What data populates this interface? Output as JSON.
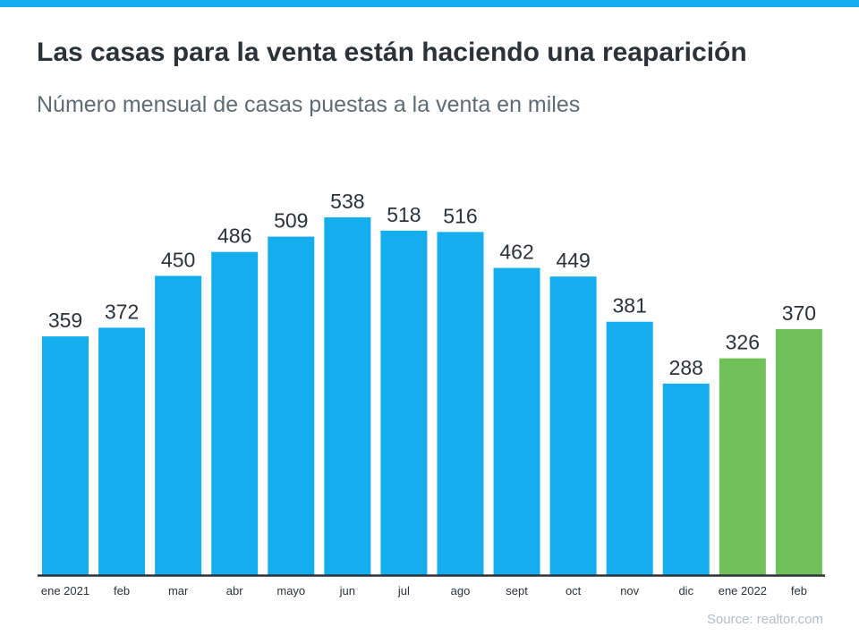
{
  "header": {
    "title": "Las casas para la venta están haciendo una reaparición",
    "subtitle": "Número mensual de casas puestas a la venta en miles"
  },
  "source": "Source: realtor.com",
  "colors": {
    "top_bar": "#14aeef",
    "bar_2021": "#14aeef",
    "bar_2022": "#70c15a",
    "axis": "#2d3238"
  },
  "chart_data": {
    "type": "bar",
    "title": "Las casas para la venta están haciendo una reaparición",
    "subtitle": "Número mensual de casas puestas a la venta en miles",
    "xlabel": "",
    "ylabel": "",
    "categories": [
      "ene 2021",
      "feb",
      "mar",
      "abr",
      "mayo",
      "jun",
      "jul",
      "ago",
      "sept",
      "oct",
      "nov",
      "dic",
      "ene 2022",
      "feb"
    ],
    "values": [
      359,
      372,
      450,
      486,
      509,
      538,
      518,
      516,
      462,
      449,
      381,
      288,
      326,
      370
    ],
    "bar_colors": [
      "#14aeef",
      "#14aeef",
      "#14aeef",
      "#14aeef",
      "#14aeef",
      "#14aeef",
      "#14aeef",
      "#14aeef",
      "#14aeef",
      "#14aeef",
      "#14aeef",
      "#14aeef",
      "#70c15a",
      "#70c15a"
    ],
    "ylim": [
      0,
      538
    ],
    "grid": false,
    "data_labels": true,
    "y_axis_visible": false
  }
}
